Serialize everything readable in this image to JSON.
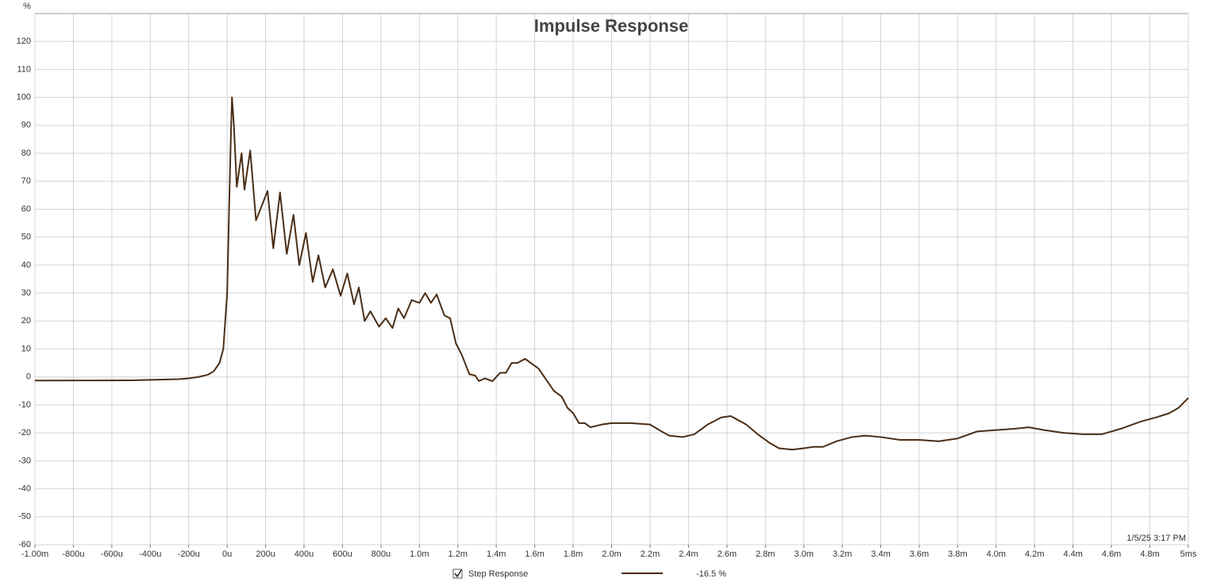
{
  "chart_data": {
    "type": "line",
    "title": "Impulse Response",
    "y_label": "%",
    "annotation": "1/5/25 3:17 PM",
    "xlim": [
      -1,
      5
    ],
    "ylim": [
      -60,
      130
    ],
    "xticks": [
      {
        "value": -1,
        "label": "-1.00m"
      },
      {
        "value": -0.8,
        "label": "-800u"
      },
      {
        "value": -0.6,
        "label": "-600u"
      },
      {
        "value": -0.4,
        "label": "-400u"
      },
      {
        "value": -0.2,
        "label": "-200u"
      },
      {
        "value": 0,
        "label": "0u"
      },
      {
        "value": 0.2,
        "label": "200u"
      },
      {
        "value": 0.4,
        "label": "400u"
      },
      {
        "value": 0.6,
        "label": "600u"
      },
      {
        "value": 0.8,
        "label": "800u"
      },
      {
        "value": 1.0,
        "label": "1.0m"
      },
      {
        "value": 1.2,
        "label": "1.2m"
      },
      {
        "value": 1.4,
        "label": "1.4m"
      },
      {
        "value": 1.6,
        "label": "1.6m"
      },
      {
        "value": 1.8,
        "label": "1.8m"
      },
      {
        "value": 2.0,
        "label": "2.0m"
      },
      {
        "value": 2.2,
        "label": "2.2m"
      },
      {
        "value": 2.4,
        "label": "2.4m"
      },
      {
        "value": 2.6,
        "label": "2.6m"
      },
      {
        "value": 2.8,
        "label": "2.8m"
      },
      {
        "value": 3.0,
        "label": "3.0m"
      },
      {
        "value": 3.2,
        "label": "3.2m"
      },
      {
        "value": 3.4,
        "label": "3.4m"
      },
      {
        "value": 3.6,
        "label": "3.6m"
      },
      {
        "value": 3.8,
        "label": "3.8m"
      },
      {
        "value": 4.0,
        "label": "4.0m"
      },
      {
        "value": 4.2,
        "label": "4.2m"
      },
      {
        "value": 4.4,
        "label": "4.4m"
      },
      {
        "value": 4.6,
        "label": "4.6m"
      },
      {
        "value": 4.8,
        "label": "4.8m"
      },
      {
        "value": 5,
        "label": "5ms"
      }
    ],
    "yticks": [
      -60,
      -50,
      -40,
      -30,
      -20,
      -10,
      0,
      10,
      20,
      30,
      40,
      50,
      60,
      70,
      80,
      90,
      100,
      110,
      120
    ],
    "grid": true,
    "x": [
      -1.0,
      -0.5,
      -0.25,
      -0.2,
      -0.15,
      -0.1,
      -0.07,
      -0.04,
      -0.02,
      0.0,
      0.01,
      0.02,
      0.025,
      0.035,
      0.05,
      0.075,
      0.09,
      0.12,
      0.15,
      0.21,
      0.24,
      0.275,
      0.31,
      0.345,
      0.375,
      0.41,
      0.445,
      0.475,
      0.51,
      0.55,
      0.59,
      0.625,
      0.66,
      0.685,
      0.715,
      0.745,
      0.79,
      0.825,
      0.86,
      0.89,
      0.92,
      0.96,
      1.0,
      1.03,
      1.06,
      1.09,
      1.13,
      1.16,
      1.19,
      1.22,
      1.26,
      1.29,
      1.31,
      1.34,
      1.38,
      1.42,
      1.45,
      1.48,
      1.51,
      1.55,
      1.58,
      1.62,
      1.66,
      1.7,
      1.74,
      1.77,
      1.8,
      1.83,
      1.86,
      1.89,
      1.95,
      2.0,
      2.1,
      2.2,
      2.26,
      2.3,
      2.37,
      2.43,
      2.5,
      2.57,
      2.62,
      2.66,
      2.7,
      2.76,
      2.82,
      2.87,
      2.94,
      3.0,
      3.05,
      3.1,
      3.17,
      3.25,
      3.32,
      3.4,
      3.5,
      3.6,
      3.7,
      3.8,
      3.9,
      4.0,
      4.1,
      4.17,
      4.25,
      4.35,
      4.45,
      4.55,
      4.65,
      4.75,
      4.83,
      4.9,
      4.95,
      5.0
    ],
    "series": [
      {
        "name": "Step Response",
        "legend_value": "-16.5 %",
        "color": "#4b2e16",
        "values": [
          -1.3,
          -1.2,
          -0.8,
          -0.5,
          0,
          0.8,
          2,
          5,
          10,
          30,
          60,
          88,
          100,
          90,
          68,
          80,
          67,
          81,
          56,
          66.5,
          46,
          66,
          44,
          58,
          40,
          51.5,
          34,
          43.5,
          32,
          38.5,
          29,
          37,
          26,
          32,
          20,
          23.5,
          18,
          21,
          17.5,
          24.5,
          21,
          27.5,
          26.5,
          30,
          26.5,
          29.5,
          22,
          21,
          12,
          8,
          1,
          0.5,
          -1.5,
          -0.5,
          -1.5,
          1.5,
          1.5,
          5,
          5,
          6.5,
          5,
          3,
          -1,
          -5,
          -7,
          -11,
          -13,
          -16.5,
          -16.5,
          -18,
          -17,
          -16.5,
          -16.5,
          -17,
          -19.5,
          -21,
          -21.5,
          -20.5,
          -17,
          -14.5,
          -14,
          -15.5,
          -17,
          -20.5,
          -23.5,
          -25.5,
          -26,
          -25.5,
          -25,
          -25,
          -23,
          -21.5,
          -21,
          -21.5,
          -22.5,
          -22.5,
          -23,
          -22,
          -19.5,
          -19,
          -18.5,
          -18,
          -19,
          -20,
          -20.5,
          -20.5,
          -18.5,
          -16,
          -14.5,
          -13,
          -11,
          -7.5
        ]
      }
    ]
  }
}
